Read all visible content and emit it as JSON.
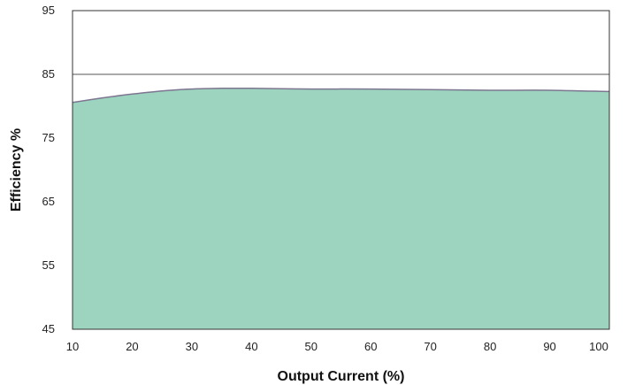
{
  "chart_data": {
    "type": "area",
    "title": "",
    "xlabel": "Output Current (%)",
    "ylabel": "Efficiency %",
    "xlim": [
      10,
      100
    ],
    "ylim": [
      45,
      95
    ],
    "x_ticks": [
      "10",
      "20",
      "30",
      "40",
      "50",
      "60",
      "70",
      "80",
      "90",
      "100"
    ],
    "y_ticks": [
      "45",
      "55",
      "65",
      "75",
      "85",
      "95"
    ],
    "grid": "horizontal",
    "series": [
      {
        "x": [
          10,
          15,
          20,
          25,
          30,
          35,
          40,
          50,
          60,
          70,
          80,
          90,
          100
        ],
        "values": [
          80.6,
          81.3,
          81.9,
          82.4,
          82.7,
          82.8,
          82.8,
          82.7,
          82.7,
          82.6,
          82.5,
          82.5,
          82.3
        ]
      }
    ],
    "colors": {
      "fill": "#9dd4bf",
      "line": "#7d7690",
      "grid": "#555555",
      "frame": "#333333"
    }
  }
}
